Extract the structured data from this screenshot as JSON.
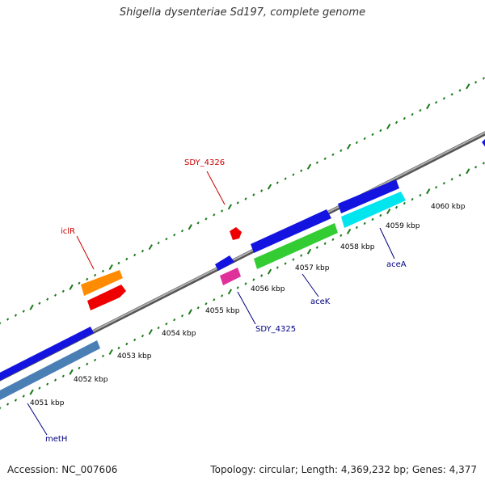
{
  "title": "Shigella dysenteriae Sd197, complete genome",
  "footer": {
    "accession": "Accession: NC_007606",
    "topology": "Topology: circular; Length: 4,369,232 bp; Genes: 4,377"
  },
  "ticks": [
    "4051 kbp",
    "4052 kbp",
    "4053 kbp",
    "4054 kbp",
    "4055 kbp",
    "4056 kbp",
    "4057 kbp",
    "4058 kbp",
    "4059 kbp",
    "4060 kbp"
  ],
  "gene_labels": {
    "metH": "metH",
    "iclR": "iclR",
    "SDY_4326": "SDY_4326",
    "SDY_4325": "SDY_4325",
    "aceK": "aceK",
    "aceA": "aceA"
  },
  "colors": {
    "backbone": "#808080",
    "dots": "#1a7a1a",
    "forward_label": "#000080",
    "reverse_label": "#cc0000",
    "metH": "#1414e0",
    "metH_inner": "#4a7fb5",
    "iclR_outer": "#ff8c00",
    "iclR_inner": "#ee0000",
    "SDY_4326": "#ee0000",
    "SDY_4325_outer": "#1414e0",
    "SDY_4325_inner": "#e0309a",
    "aceB": "#1414e0",
    "aceK": "#33cc33",
    "aceA_outer": "#1414e0",
    "aceA_inner": "#00e5ee"
  }
}
